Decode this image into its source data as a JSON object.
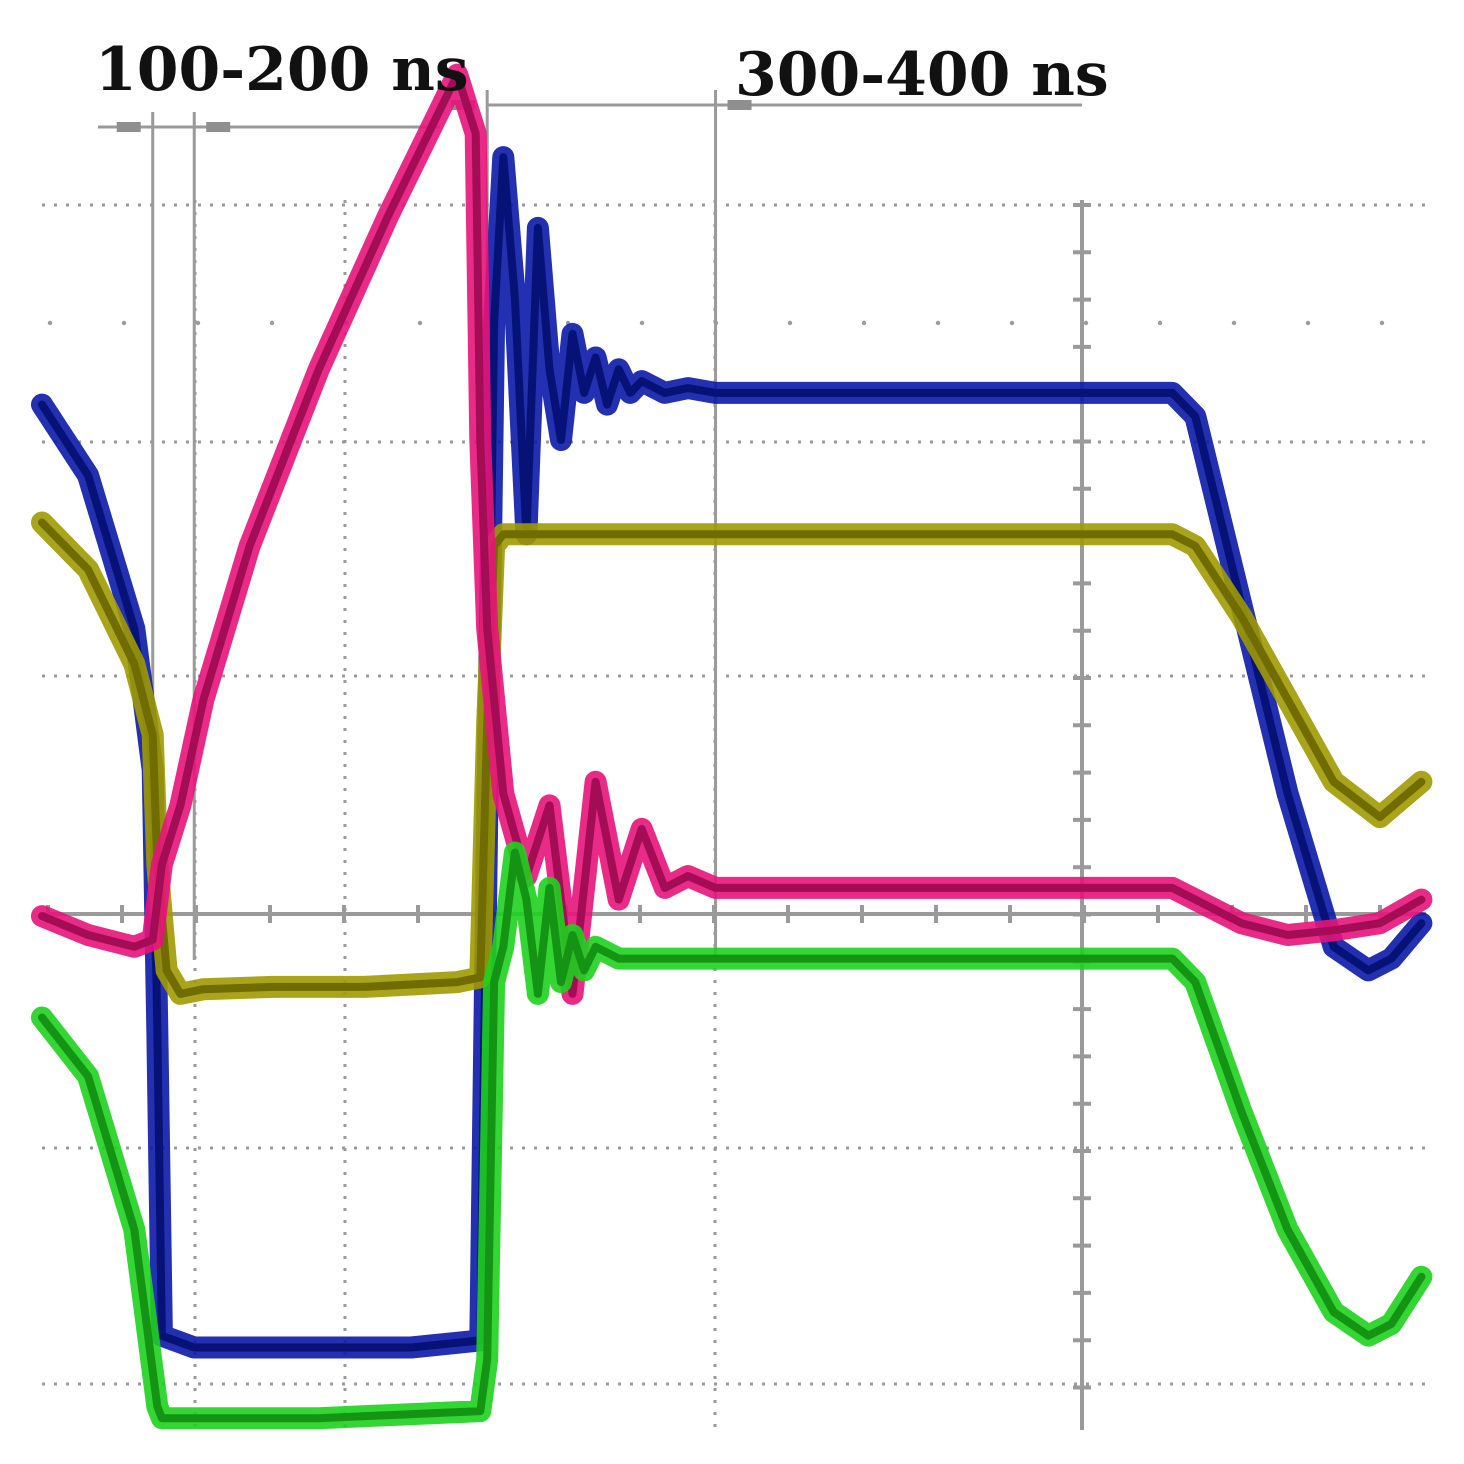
{
  "chart_data": {
    "type": "line",
    "title": "",
    "xlabel": "",
    "ylabel": "",
    "xlim": [
      0,
      600
    ],
    "ylim": [
      -2.2,
      3.4
    ],
    "grid": true,
    "annotations": [
      {
        "text": "100-200 ns",
        "x_start": 48,
        "x_end": 66
      },
      {
        "text": "300-400 ns",
        "x_start": 193,
        "x_end": 292
      }
    ],
    "series": [
      {
        "color": "#0a1aa8",
        "x": [
          0,
          20,
          40,
          48,
          50,
          52,
          66,
          80,
          120,
          160,
          190,
          193,
          196,
          200,
          205,
          210,
          215,
          220,
          225,
          230,
          235,
          240,
          245,
          250,
          255,
          260,
          270,
          280,
          292,
          330,
          380,
          430,
          490,
          500,
          520,
          540,
          560,
          575,
          585,
          598
        ],
        "y": [
          2.15,
          1.85,
          1.2,
          0.6,
          -0.5,
          -1.8,
          -1.85,
          -1.85,
          -1.85,
          -1.85,
          -1.82,
          0.4,
          2.5,
          3.2,
          2.6,
          1.6,
          2.9,
          2.3,
          2.0,
          2.45,
          2.2,
          2.35,
          2.15,
          2.3,
          2.2,
          2.25,
          2.2,
          2.22,
          2.2,
          2.2,
          2.2,
          2.2,
          2.2,
          2.1,
          1.3,
          0.5,
          -0.15,
          -0.25,
          -0.2,
          -0.05
        ]
      },
      {
        "color": "#a09a00",
        "x": [
          0,
          20,
          40,
          48,
          50,
          54,
          60,
          70,
          100,
          140,
          180,
          190,
          193,
          196,
          200,
          210,
          230,
          260,
          300,
          350,
          400,
          450,
          490,
          500,
          520,
          540,
          560,
          580,
          598
        ],
        "y": [
          1.65,
          1.45,
          1.05,
          0.75,
          0.2,
          -0.25,
          -0.35,
          -0.33,
          -0.32,
          -0.32,
          -0.3,
          -0.28,
          0.8,
          1.55,
          1.6,
          1.6,
          1.6,
          1.6,
          1.6,
          1.6,
          1.6,
          1.6,
          1.6,
          1.55,
          1.25,
          0.9,
          0.55,
          0.4,
          0.55
        ]
      },
      {
        "color": "#e8137a",
        "x": [
          0,
          20,
          40,
          48,
          52,
          60,
          70,
          90,
          120,
          150,
          180,
          188,
          190,
          193,
          200,
          210,
          220,
          230,
          240,
          250,
          260,
          270,
          280,
          292,
          330,
          380,
          430,
          490,
          500,
          520,
          540,
          560,
          580,
          598
        ],
        "y": [
          -0.02,
          -0.1,
          -0.15,
          -0.12,
          0.2,
          0.45,
          0.9,
          1.55,
          2.3,
          2.95,
          3.55,
          3.3,
          2.0,
          1.2,
          0.5,
          0.15,
          0.45,
          -0.35,
          0.55,
          0.05,
          0.35,
          0.1,
          0.15,
          0.1,
          0.1,
          0.1,
          0.1,
          0.1,
          0.05,
          -0.05,
          -0.1,
          -0.08,
          -0.05,
          0.05
        ]
      },
      {
        "color": "#1ed21e",
        "x": [
          0,
          20,
          40,
          48,
          50,
          52,
          66,
          120,
          190,
          193,
          196,
          200,
          205,
          210,
          215,
          220,
          225,
          230,
          235,
          240,
          250,
          260,
          270,
          280,
          292,
          330,
          380,
          430,
          490,
          500,
          520,
          540,
          560,
          575,
          585,
          598
        ],
        "y": [
          -0.45,
          -0.7,
          -1.35,
          -1.95,
          -2.1,
          -2.15,
          -2.15,
          -2.15,
          -2.12,
          -1.9,
          -0.3,
          -0.15,
          0.25,
          0.05,
          -0.35,
          0.1,
          -0.3,
          -0.1,
          -0.25,
          -0.15,
          -0.2,
          -0.2,
          -0.2,
          -0.2,
          -0.2,
          -0.2,
          -0.2,
          -0.2,
          -0.2,
          -0.3,
          -0.85,
          -1.35,
          -1.7,
          -1.8,
          -1.75,
          -1.55
        ]
      }
    ]
  }
}
